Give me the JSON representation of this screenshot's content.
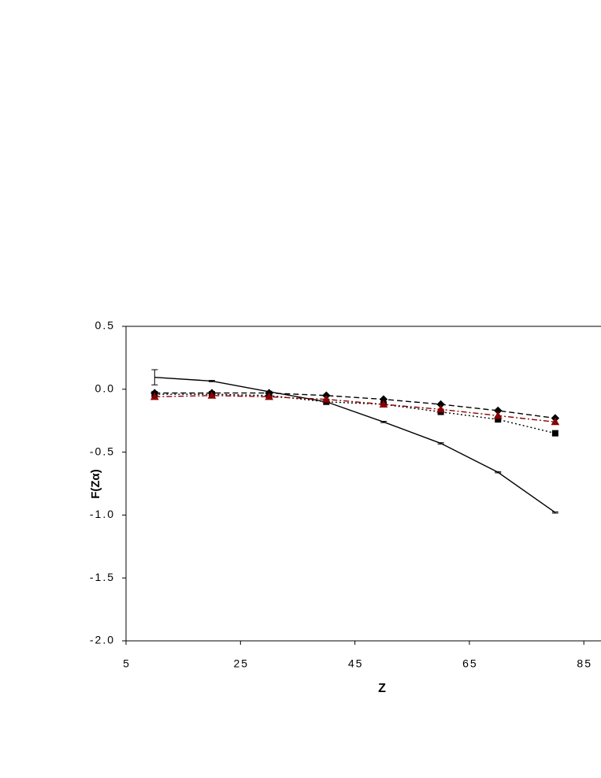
{
  "chart_data": {
    "type": "line",
    "y_label": "F(Zα)",
    "x_label": "Z",
    "x": [
      10,
      20,
      30,
      40,
      50,
      60,
      70,
      80
    ],
    "series": [
      {
        "color": "#000000",
        "dash": "solid",
        "marker": "none",
        "values": [
          0.095,
          0.065,
          -0.02,
          -0.1,
          -0.26,
          -0.43,
          -0.66,
          -0.98
        ],
        "errors": [
          0.06,
          0.005,
          0.005,
          0.005,
          0.005,
          0.005,
          0.005,
          0.005
        ]
      },
      {
        "color": "#000000",
        "dash": "dashed",
        "marker": "diamond",
        "values": [
          -0.03,
          -0.03,
          -0.03,
          -0.05,
          -0.08,
          -0.12,
          -0.17,
          -0.23
        ]
      },
      {
        "color": "#000000",
        "dash": "dotted",
        "marker": "square",
        "values": [
          -0.04,
          -0.04,
          -0.05,
          -0.1,
          -0.12,
          -0.18,
          -0.24,
          -0.35
        ]
      },
      {
        "color": "#8b0000",
        "dash": "dashdot",
        "marker": "triangle",
        "values": [
          -0.06,
          -0.05,
          -0.06,
          -0.08,
          -0.12,
          -0.16,
          -0.21,
          -0.26
        ]
      }
    ],
    "xlim": [
      5,
      88
    ],
    "xticks": [
      5,
      25,
      45,
      65,
      85
    ],
    "ylim": [
      -2,
      0.5
    ],
    "yticks": [
      {
        "value": -2,
        "label": "-2.0"
      },
      -1.5,
      {
        "value": -1,
        "label": "-1.0"
      },
      -0.5,
      {
        "value": 0,
        "label": "0.0"
      },
      0.5
    ],
    "grid": false
  }
}
